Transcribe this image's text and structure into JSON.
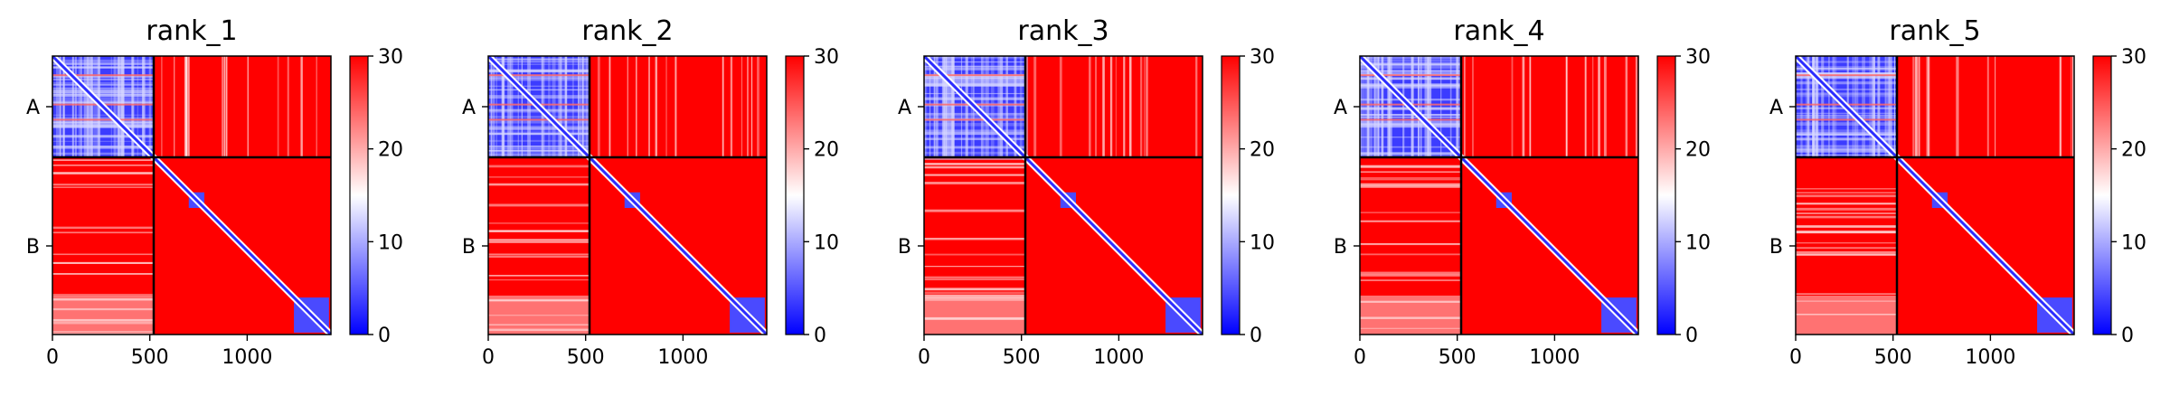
{
  "chart_data": [
    {
      "type": "heatmap",
      "title": "rank_1",
      "chain_labels": [
        "A",
        "B"
      ],
      "chain_boundary": 520,
      "sequence_length": 1430,
      "x_ticks": [
        0,
        500,
        1000
      ],
      "colorbar": {
        "min": 0,
        "max": 30,
        "ticks": [
          0,
          10,
          20,
          30
        ],
        "colormap": "bwr",
        "low_color": "#0000ff",
        "mid_color": "#ffffff",
        "high_color": "#ff0000"
      },
      "blocks": {
        "A-A": "low",
        "A-B": "high",
        "B-A": "high",
        "B-B": "high",
        "diagonal": "low"
      },
      "domain_blocks": [
        [
          700,
          780
        ],
        [
          1240,
          1420
        ]
      ]
    },
    {
      "type": "heatmap",
      "title": "rank_2",
      "chain_labels": [
        "A",
        "B"
      ],
      "chain_boundary": 520,
      "sequence_length": 1430,
      "x_ticks": [
        0,
        500,
        1000
      ],
      "colorbar": {
        "min": 0,
        "max": 30,
        "ticks": [
          0,
          10,
          20,
          30
        ],
        "colormap": "bwr",
        "low_color": "#0000ff",
        "mid_color": "#ffffff",
        "high_color": "#ff0000"
      },
      "blocks": {
        "A-A": "low",
        "A-B": "high",
        "B-A": "high",
        "B-B": "high",
        "diagonal": "low"
      },
      "domain_blocks": [
        [
          700,
          780
        ],
        [
          1240,
          1420
        ]
      ]
    },
    {
      "type": "heatmap",
      "title": "rank_3",
      "chain_labels": [
        "A",
        "B"
      ],
      "chain_boundary": 520,
      "sequence_length": 1430,
      "x_ticks": [
        0,
        500,
        1000
      ],
      "colorbar": {
        "min": 0,
        "max": 30,
        "ticks": [
          0,
          10,
          20,
          30
        ],
        "colormap": "bwr",
        "low_color": "#0000ff",
        "mid_color": "#ffffff",
        "high_color": "#ff0000"
      },
      "blocks": {
        "A-A": "low",
        "A-B": "high",
        "B-A": "high",
        "B-B": "high",
        "diagonal": "low"
      },
      "domain_blocks": [
        [
          700,
          780
        ],
        [
          1240,
          1420
        ]
      ]
    },
    {
      "type": "heatmap",
      "title": "rank_4",
      "chain_labels": [
        "A",
        "B"
      ],
      "chain_boundary": 520,
      "sequence_length": 1430,
      "x_ticks": [
        0,
        500,
        1000
      ],
      "colorbar": {
        "min": 0,
        "max": 30,
        "ticks": [
          0,
          10,
          20,
          30
        ],
        "colormap": "bwr",
        "low_color": "#0000ff",
        "mid_color": "#ffffff",
        "high_color": "#ff0000"
      },
      "blocks": {
        "A-A": "low",
        "A-B": "high",
        "B-A": "high",
        "B-B": "high",
        "diagonal": "low"
      },
      "domain_blocks": [
        [
          700,
          780
        ],
        [
          1240,
          1420
        ]
      ]
    },
    {
      "type": "heatmap",
      "title": "rank_5",
      "chain_labels": [
        "A",
        "B"
      ],
      "chain_boundary": 520,
      "sequence_length": 1430,
      "x_ticks": [
        0,
        500,
        1000
      ],
      "colorbar": {
        "min": 0,
        "max": 30,
        "ticks": [
          0,
          10,
          20,
          30
        ],
        "colormap": "bwr",
        "low_color": "#0000ff",
        "mid_color": "#ffffff",
        "high_color": "#ff0000"
      },
      "blocks": {
        "A-A": "low",
        "A-B": "high",
        "B-A": "high",
        "B-B": "high",
        "diagonal": "low"
      },
      "domain_blocks": [
        [
          700,
          780
        ],
        [
          1240,
          1420
        ]
      ]
    }
  ]
}
